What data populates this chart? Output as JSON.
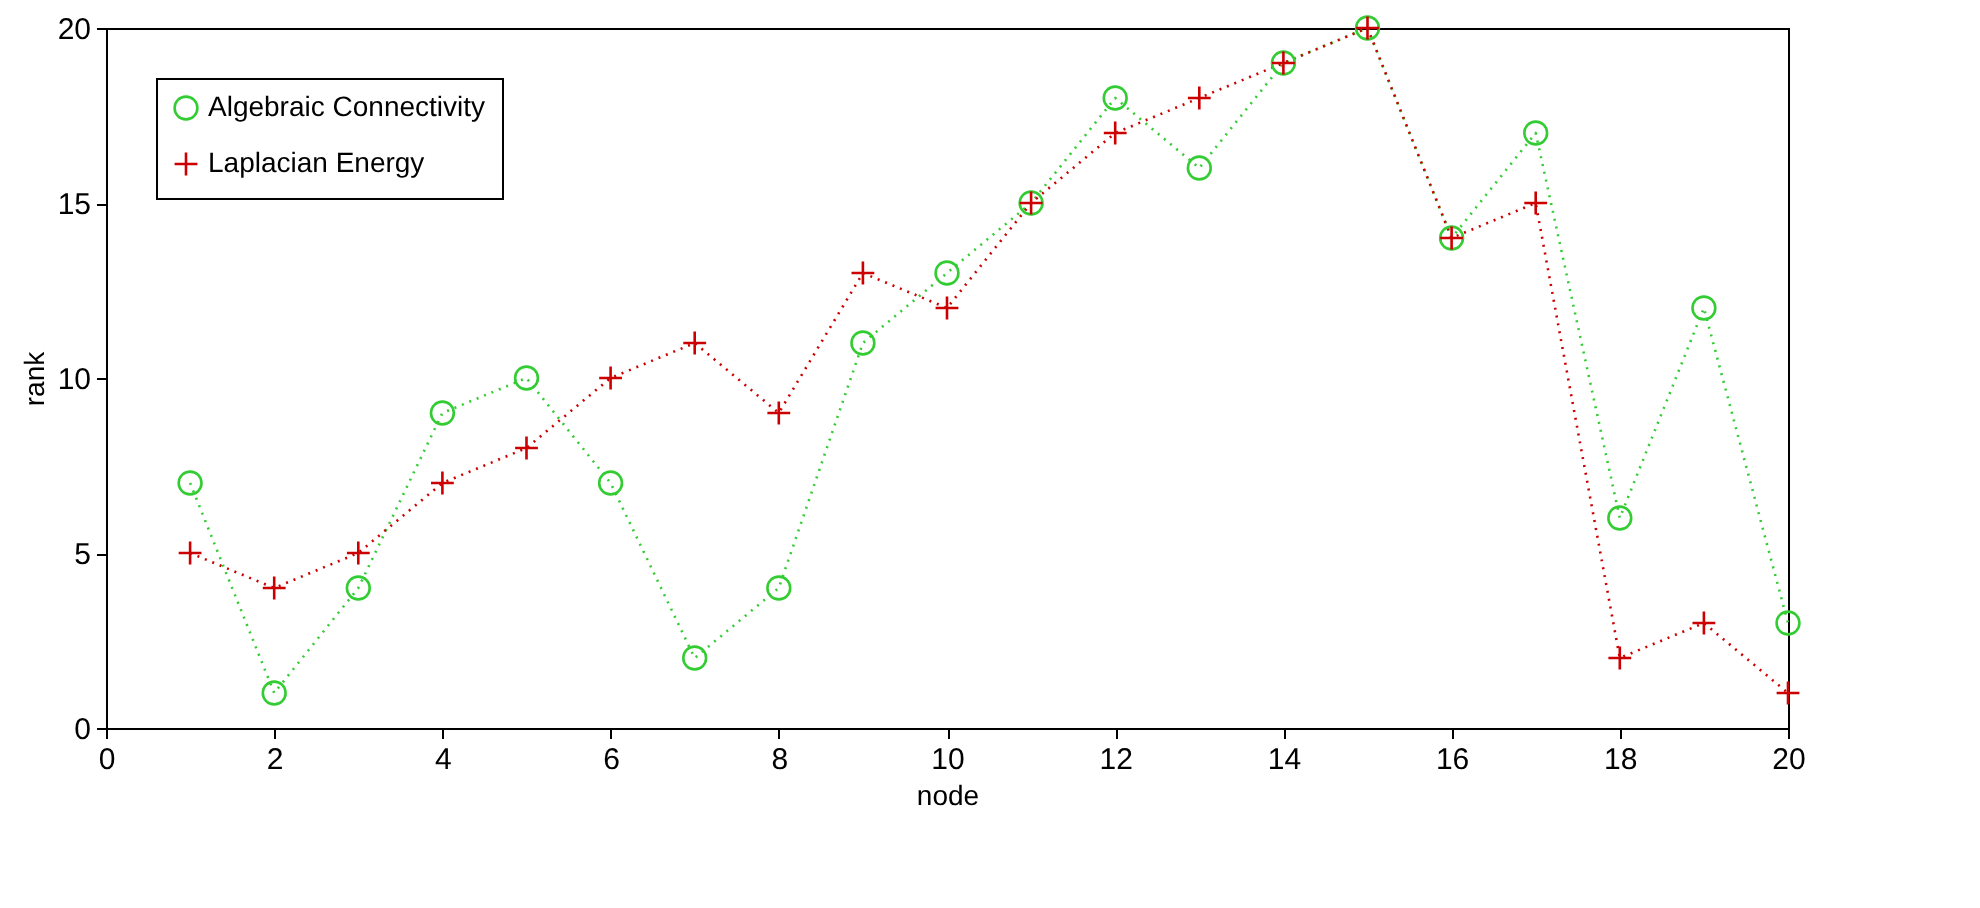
{
  "chart_data": {
    "type": "line",
    "xlabel": "node",
    "ylabel": "rank",
    "x": [
      1,
      2,
      3,
      4,
      5,
      6,
      7,
      8,
      9,
      10,
      11,
      12,
      13,
      14,
      15,
      16,
      17,
      18,
      19,
      20
    ],
    "series": [
      {
        "name": "Algebraic Connectivity",
        "color": "#33cc33",
        "marker": "circle",
        "line_style": "dotted",
        "values": [
          7,
          1,
          4,
          9,
          10,
          7,
          2,
          4,
          11,
          13,
          15,
          18,
          16,
          19,
          20,
          14,
          17,
          6,
          12,
          3
        ]
      },
      {
        "name": "Laplacian Energy",
        "color": "#cc0000",
        "marker": "cross",
        "line_style": "dotted",
        "values": [
          5,
          4,
          5,
          7,
          8,
          10,
          11,
          9,
          13,
          12,
          15,
          17,
          18,
          19,
          20,
          14,
          15,
          2,
          3,
          1
        ]
      }
    ],
    "xlim": [
      0,
      20
    ],
    "xticks": [
      0,
      2,
      4,
      6,
      8,
      10,
      12,
      14,
      16,
      18,
      20
    ],
    "ylim": [
      0,
      20
    ],
    "yticks": [
      0,
      5,
      10,
      15,
      20
    ],
    "grid": false,
    "legend": "top left"
  }
}
